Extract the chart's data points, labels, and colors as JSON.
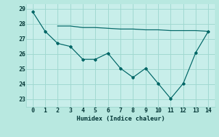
{
  "line1_x": [
    0,
    1,
    2,
    3,
    4,
    5,
    6,
    7,
    8,
    9,
    10,
    11,
    12,
    13,
    14
  ],
  "line1_y": [
    28.8,
    27.5,
    26.7,
    26.5,
    25.65,
    25.65,
    26.05,
    25.05,
    24.45,
    25.05,
    24.05,
    23.05,
    24.05,
    26.1,
    27.5
  ],
  "line2_x": [
    2,
    3,
    4,
    5,
    6,
    7,
    8,
    9,
    10,
    11,
    12,
    13,
    14
  ],
  "line2_y": [
    27.85,
    27.85,
    27.75,
    27.75,
    27.7,
    27.65,
    27.65,
    27.6,
    27.6,
    27.55,
    27.55,
    27.55,
    27.5
  ],
  "line_color": "#006666",
  "bg_color": "#b8e8e0",
  "plot_bg_color": "#c8eeea",
  "grid_color": "#9fd8d0",
  "xlabel": "Humidex (Indice chaleur)",
  "xlim": [
    -0.5,
    14.5
  ],
  "ylim": [
    22.5,
    29.3
  ],
  "yticks": [
    23,
    24,
    25,
    26,
    27,
    28,
    29
  ],
  "xticks": [
    0,
    1,
    2,
    3,
    4,
    5,
    6,
    7,
    8,
    9,
    10,
    11,
    12,
    13,
    14
  ]
}
